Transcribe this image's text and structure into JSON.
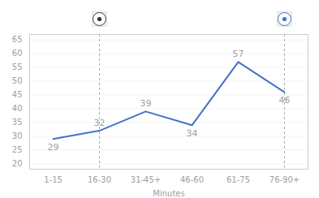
{
  "chart_data": {
    "type": "line",
    "categories": [
      "1-15",
      "16-30",
      "31-45+",
      "46-60",
      "61-75",
      "76-90+"
    ],
    "values": [
      29,
      32,
      39,
      34,
      57,
      46
    ],
    "color": "#4472C4",
    "xlabel": "Minutes",
    "ylim": [
      18,
      67
    ],
    "yticks": [
      20,
      25,
      30,
      35,
      40,
      45,
      50,
      55,
      60,
      65
    ],
    "grid": true,
    "data_labels": true,
    "highlight_categories": [
      "16-30",
      "76-90+"
    ]
  }
}
